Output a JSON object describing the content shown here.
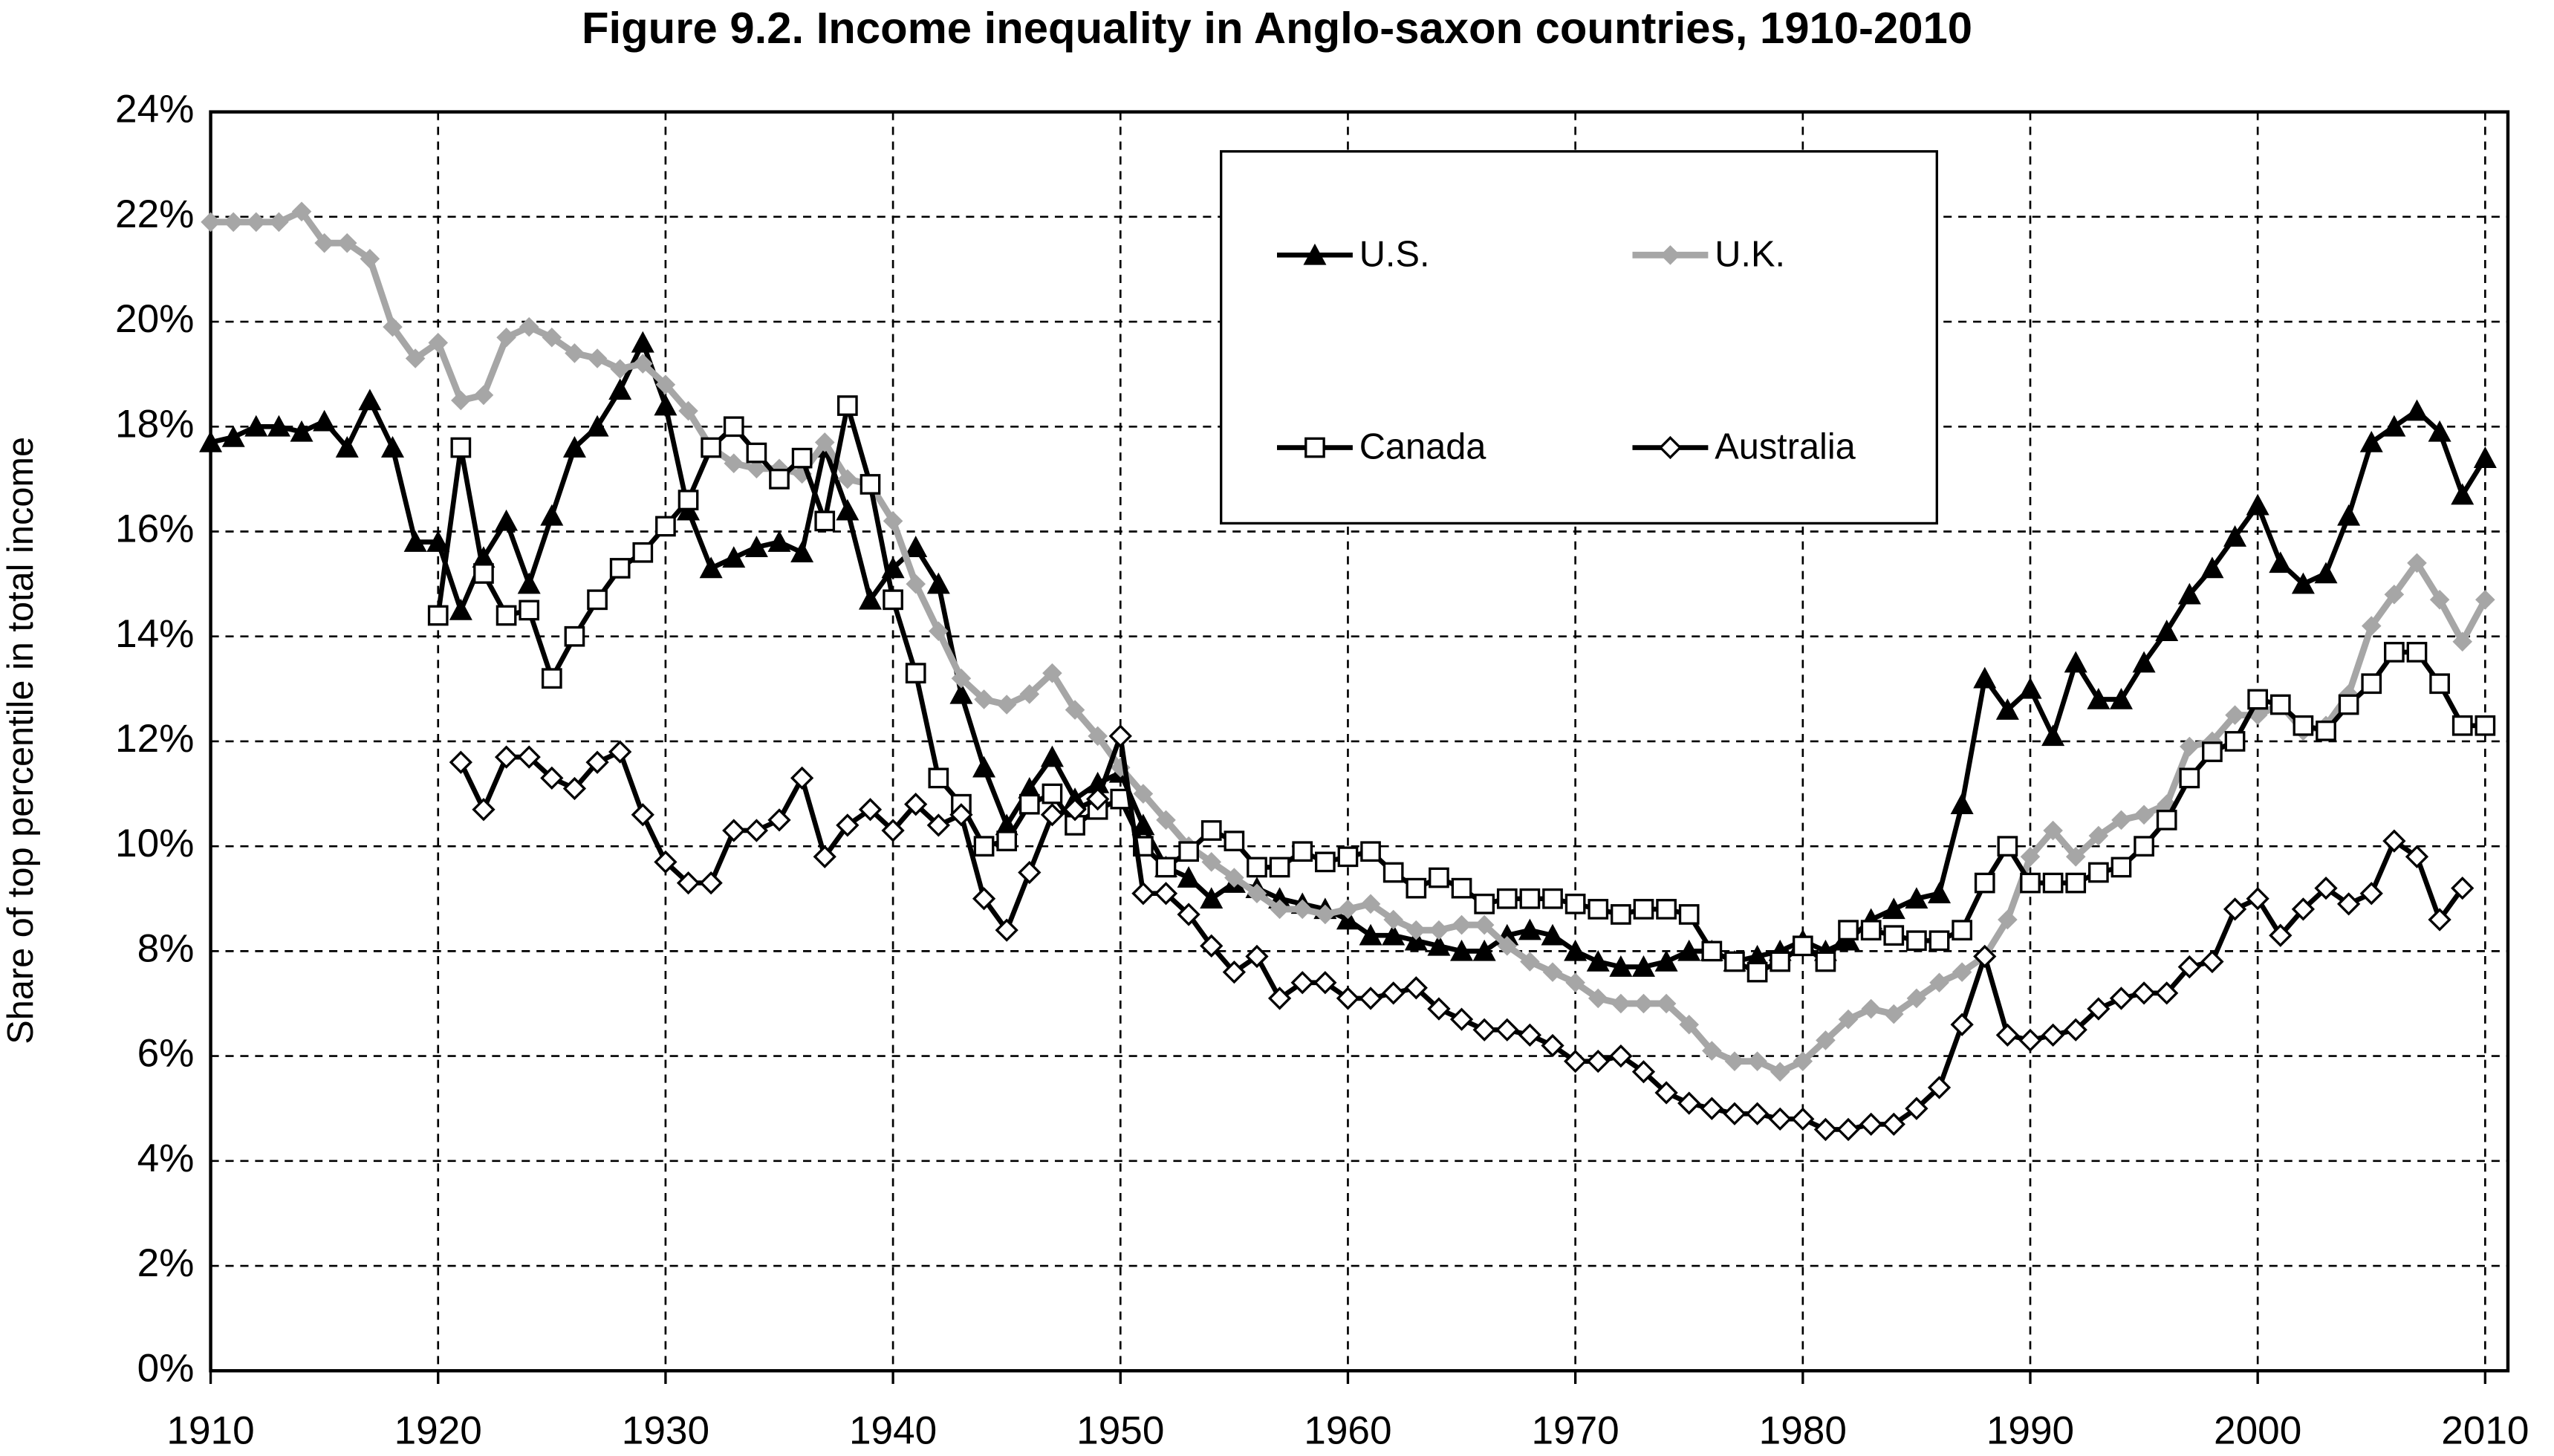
{
  "chart_data": {
    "type": "line",
    "title": "Figure 9.2. Income inequality in Anglo-saxon countries, 1910-2010",
    "y_label": "Share of top percentile in total income",
    "x": [
      1910,
      1911,
      1912,
      1913,
      1914,
      1915,
      1916,
      1917,
      1918,
      1919,
      1920,
      1921,
      1922,
      1923,
      1924,
      1925,
      1926,
      1927,
      1928,
      1929,
      1930,
      1931,
      1932,
      1933,
      1934,
      1935,
      1936,
      1937,
      1938,
      1939,
      1940,
      1941,
      1942,
      1943,
      1944,
      1945,
      1946,
      1947,
      1948,
      1949,
      1950,
      1951,
      1952,
      1953,
      1954,
      1955,
      1956,
      1957,
      1958,
      1959,
      1960,
      1961,
      1962,
      1963,
      1964,
      1965,
      1966,
      1967,
      1968,
      1969,
      1970,
      1971,
      1972,
      1973,
      1974,
      1975,
      1976,
      1977,
      1978,
      1979,
      1980,
      1981,
      1982,
      1983,
      1984,
      1985,
      1986,
      1987,
      1988,
      1989,
      1990,
      1991,
      1992,
      1993,
      1994,
      1995,
      1996,
      1997,
      1998,
      1999,
      2000,
      2001,
      2002,
      2003,
      2004,
      2005,
      2006,
      2007,
      2008,
      2009,
      2010
    ],
    "series": [
      {
        "name": "U.S.",
        "color": "#000000",
        "marker": "triangle",
        "values": [
          17.7,
          17.8,
          18.0,
          18.0,
          17.9,
          18.1,
          17.6,
          18.5,
          17.6,
          15.8,
          15.8,
          14.5,
          15.5,
          16.2,
          15.0,
          16.3,
          17.6,
          18.0,
          18.7,
          19.6,
          18.4,
          16.4,
          15.3,
          15.5,
          15.7,
          15.8,
          15.6,
          17.6,
          16.4,
          14.7,
          15.3,
          15.7,
          15.0,
          12.9,
          11.5,
          10.4,
          11.1,
          11.7,
          10.9,
          11.2,
          11.4,
          10.4,
          9.6,
          9.4,
          9.0,
          9.3,
          9.2,
          9.0,
          8.9,
          8.8,
          8.6,
          8.3,
          8.3,
          8.2,
          8.1,
          8.0,
          8.0,
          8.3,
          8.4,
          8.3,
          8.0,
          7.8,
          7.7,
          7.7,
          7.8,
          8.0,
          8.0,
          7.8,
          7.9,
          8.0,
          8.2,
          8.0,
          8.2,
          8.6,
          8.8,
          9.0,
          9.1,
          10.8,
          13.2,
          12.6,
          13.0,
          12.1,
          13.5,
          12.8,
          12.8,
          13.5,
          14.1,
          14.8,
          15.3,
          15.9,
          16.5,
          15.4,
          15.0,
          15.2,
          16.3,
          17.7,
          18.0,
          18.3,
          17.9,
          16.7,
          17.4
        ]
      },
      {
        "name": "U.K.",
        "color": "#a6a6a6",
        "marker": "diamond",
        "values": [
          21.9,
          21.9,
          21.9,
          21.9,
          22.1,
          21.5,
          21.5,
          21.2,
          19.9,
          19.3,
          19.6,
          18.5,
          18.6,
          19.7,
          19.9,
          19.7,
          19.4,
          19.3,
          19.1,
          19.2,
          18.8,
          18.3,
          17.6,
          17.3,
          17.2,
          17.2,
          17.1,
          17.7,
          17.0,
          16.9,
          16.2,
          15.0,
          14.1,
          13.2,
          12.8,
          12.7,
          12.9,
          13.3,
          12.6,
          12.1,
          11.5,
          11.0,
          10.5,
          10.0,
          9.7,
          9.4,
          9.1,
          8.8,
          8.8,
          8.7,
          8.8,
          8.9,
          8.6,
          8.4,
          8.4,
          8.5,
          8.5,
          8.1,
          7.8,
          7.6,
          7.4,
          7.1,
          7.0,
          7.0,
          7.0,
          6.6,
          6.1,
          5.9,
          5.9,
          5.7,
          5.9,
          6.3,
          6.7,
          6.9,
          6.8,
          7.1,
          7.4,
          7.6,
          7.9,
          8.6,
          9.8,
          10.3,
          9.8,
          10.2,
          10.5,
          10.6,
          10.8,
          11.9,
          12.0,
          12.5,
          12.5,
          12.7,
          12.2,
          12.3,
          12.9,
          14.2,
          14.8,
          15.4,
          14.7,
          13.9,
          14.7
        ]
      },
      {
        "name": "Canada",
        "color": "#000000",
        "marker": "square",
        "values": [
          null,
          null,
          null,
          null,
          null,
          null,
          null,
          null,
          null,
          null,
          14.4,
          17.6,
          15.2,
          14.4,
          14.5,
          13.2,
          14.0,
          14.7,
          15.3,
          15.6,
          16.1,
          16.6,
          17.6,
          18.0,
          17.5,
          17.0,
          17.4,
          16.2,
          18.4,
          16.9,
          14.7,
          13.3,
          11.3,
          10.8,
          10.0,
          10.1,
          10.8,
          11.0,
          10.4,
          10.7,
          10.9,
          10.0,
          9.6,
          9.9,
          10.3,
          10.1,
          9.6,
          9.6,
          9.9,
          9.7,
          9.8,
          9.9,
          9.5,
          9.2,
          9.4,
          9.2,
          8.9,
          9.0,
          9.0,
          9.0,
          8.9,
          8.8,
          8.7,
          8.8,
          8.8,
          8.7,
          8.0,
          7.8,
          7.6,
          7.8,
          8.1,
          7.8,
          8.4,
          8.4,
          8.3,
          8.2,
          8.2,
          8.4,
          9.3,
          10.0,
          9.3,
          9.3,
          9.3,
          9.5,
          9.6,
          10.0,
          10.5,
          11.3,
          11.8,
          12.0,
          12.8,
          12.7,
          12.3,
          12.2,
          12.7,
          13.1,
          13.7,
          13.7,
          13.1,
          12.3,
          12.3
        ]
      },
      {
        "name": "Australia",
        "color": "#000000",
        "marker": "open-diamond",
        "values": [
          null,
          null,
          null,
          null,
          null,
          null,
          null,
          null,
          null,
          null,
          null,
          11.6,
          10.7,
          11.7,
          11.7,
          11.3,
          11.1,
          11.6,
          11.8,
          10.6,
          9.7,
          9.3,
          9.3,
          10.3,
          10.3,
          10.5,
          11.3,
          9.8,
          10.4,
          10.7,
          10.3,
          10.8,
          10.4,
          10.6,
          9.0,
          8.4,
          9.5,
          10.6,
          10.7,
          10.9,
          12.1,
          9.1,
          9.1,
          8.7,
          8.1,
          7.6,
          7.9,
          7.1,
          7.4,
          7.4,
          7.1,
          7.1,
          7.2,
          7.3,
          6.9,
          6.7,
          6.5,
          6.5,
          6.4,
          6.2,
          5.9,
          5.9,
          6.0,
          5.7,
          5.3,
          5.1,
          5.0,
          4.9,
          4.9,
          4.8,
          4.8,
          4.6,
          4.6,
          4.7,
          4.7,
          5.0,
          5.4,
          6.6,
          7.9,
          6.4,
          6.3,
          6.4,
          6.5,
          6.9,
          7.1,
          7.2,
          7.2,
          7.7,
          7.8,
          8.8,
          9.0,
          8.3,
          8.8,
          9.2,
          8.9,
          9.1,
          10.1,
          9.8,
          8.6,
          9.2,
          null
        ]
      }
    ],
    "xlim": [
      1910,
      2011
    ],
    "xticks": [
      1910,
      1920,
      1930,
      1940,
      1950,
      1960,
      1970,
      1980,
      1990,
      2000,
      2010
    ],
    "ylim": [
      0,
      24
    ],
    "yticks": [
      {
        "value": 0,
        "label": "0%"
      },
      {
        "value": 2,
        "label": "2%"
      },
      {
        "value": 4,
        "label": "4%"
      },
      {
        "value": 6,
        "label": "6%"
      },
      {
        "value": 8,
        "label": "8%"
      },
      {
        "value": 10,
        "label": "10%"
      },
      {
        "value": 12,
        "label": "12%"
      },
      {
        "value": 14,
        "label": "14%"
      },
      {
        "value": 16,
        "label": "16%"
      },
      {
        "value": 18,
        "label": "18%"
      },
      {
        "value": 20,
        "label": "20%"
      },
      {
        "value": 22,
        "label": "22%"
      },
      {
        "value": 24,
        "label": "24%"
      }
    ],
    "grid": true
  }
}
